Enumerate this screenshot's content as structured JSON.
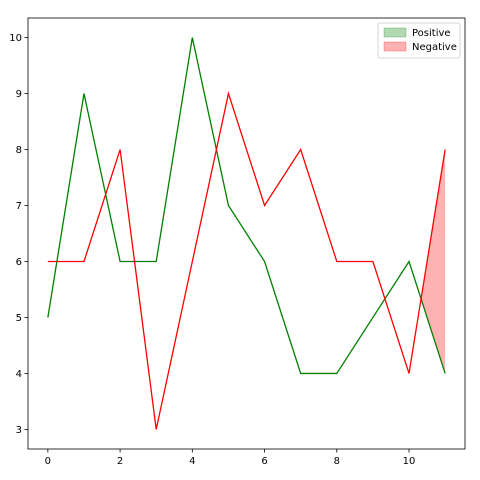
{
  "chart_data": {
    "type": "area",
    "x": [
      0,
      1,
      2,
      3,
      4,
      5,
      6,
      7,
      8,
      9,
      10,
      11
    ],
    "series": [
      {
        "values": [
          5,
          9,
          6,
          6,
          10,
          7,
          6,
          4,
          4,
          5,
          6,
          4
        ],
        "color": "#008000"
      },
      {
        "values": [
          6,
          6,
          8,
          3,
          6,
          9,
          7,
          8,
          6,
          6,
          4,
          8
        ],
        "color": "#ff0000"
      }
    ],
    "fills": [
      {
        "name": "Positive",
        "where": "series1 >= series2",
        "color": "#008000",
        "alpha": 0.3
      },
      {
        "name": "Negative",
        "where": "series1 < series2",
        "color": "#ff0000",
        "alpha": 0.3
      }
    ],
    "xlim": [
      -0.55,
      11.55
    ],
    "ylim": [
      2.65,
      10.35
    ],
    "xticks": [
      0,
      2,
      4,
      6,
      8,
      10
    ],
    "yticks": [
      3,
      4,
      5,
      6,
      7,
      8,
      9,
      10
    ],
    "grid": false,
    "legend": {
      "placement": "top-right",
      "entries": [
        "Positive",
        "Negative"
      ]
    }
  }
}
